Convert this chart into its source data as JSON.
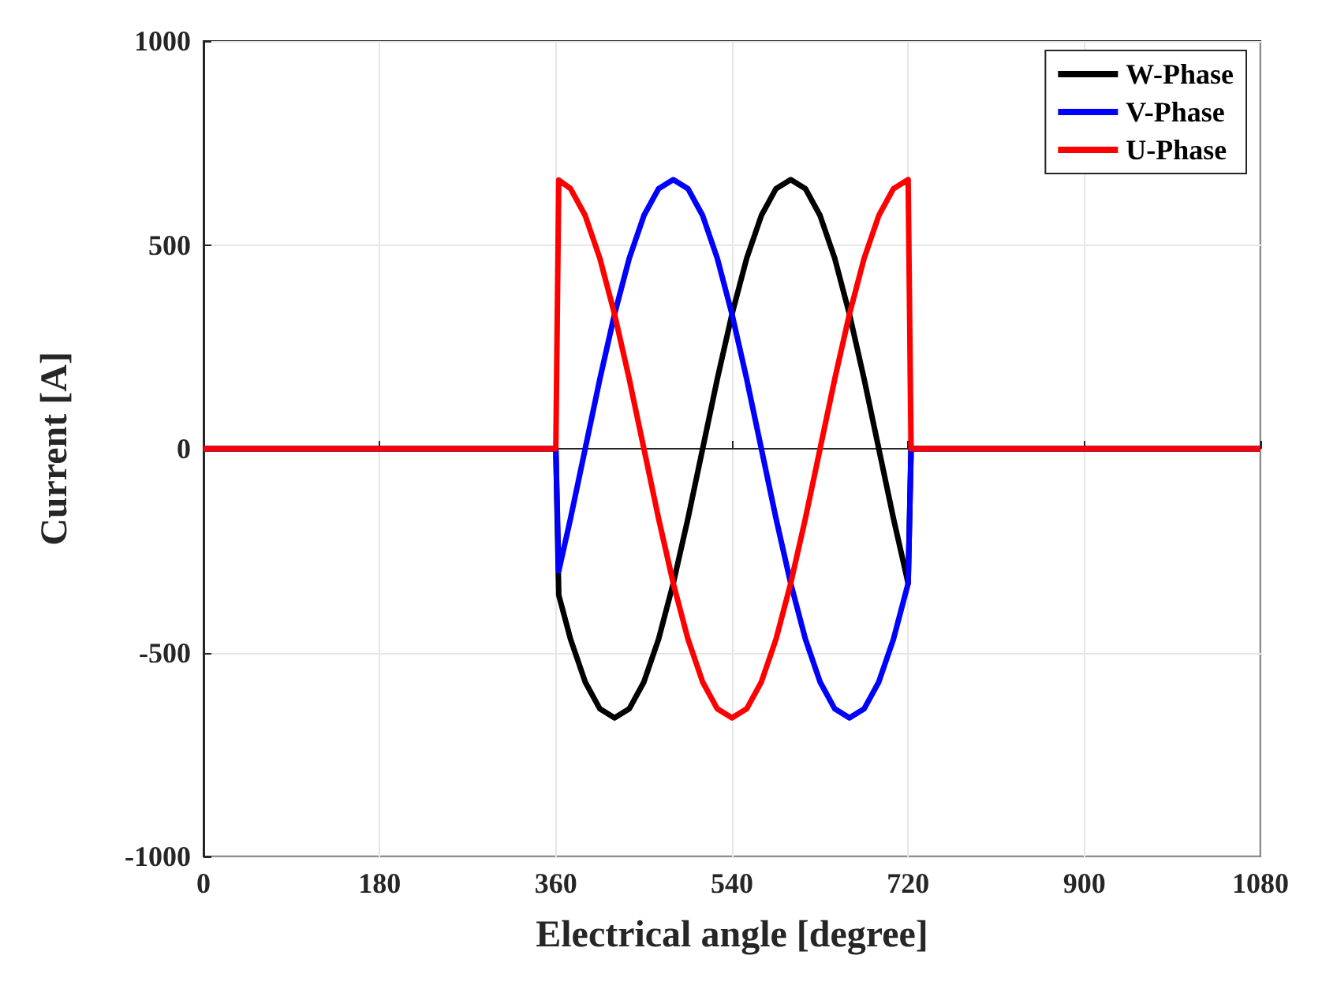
{
  "chart_data": {
    "type": "line",
    "xlabel": "Electrical angle [degree]",
    "ylabel": "Current [A]",
    "x": [
      0,
      360,
      363,
      375,
      390,
      405,
      420,
      435,
      450,
      465,
      480,
      495,
      510,
      525,
      540,
      555,
      570,
      585,
      600,
      615,
      630,
      645,
      660,
      675,
      690,
      705,
      720,
      723,
      1080
    ],
    "series": [
      {
        "name": "W-Phase",
        "color": "#000000",
        "values": [
          0,
          0,
          -359,
          -467,
          -572,
          -638,
          -660,
          -638,
          -572,
          -467,
          -330,
          -171,
          0,
          171,
          330,
          467,
          572,
          638,
          660,
          638,
          572,
          467,
          330,
          171,
          0,
          -171,
          -330,
          0,
          0
        ]
      },
      {
        "name": "V-Phase",
        "color": "#0000ff",
        "values": [
          0,
          0,
          -300,
          -171,
          0,
          171,
          330,
          467,
          572,
          638,
          660,
          638,
          572,
          467,
          330,
          171,
          0,
          -171,
          -330,
          -467,
          -572,
          -638,
          -660,
          -638,
          -572,
          -467,
          -330,
          0,
          0
        ]
      },
      {
        "name": "U-Phase",
        "color": "#ff0000",
        "values": [
          0,
          0,
          659,
          638,
          572,
          467,
          330,
          171,
          0,
          -171,
          -330,
          -467,
          -572,
          -638,
          -660,
          -638,
          -572,
          -467,
          -330,
          -171,
          0,
          171,
          330,
          467,
          572,
          638,
          660,
          0,
          0
        ]
      }
    ],
    "xlim": [
      0,
      1080
    ],
    "xticks": [
      0,
      180,
      360,
      540,
      720,
      900,
      1080
    ],
    "ylim": [
      -1000,
      1000
    ],
    "yticks": [
      -1000,
      -500,
      0,
      500,
      1000
    ],
    "grid": true,
    "legend": "top right",
    "marker": "none",
    "line_style": "solid"
  }
}
